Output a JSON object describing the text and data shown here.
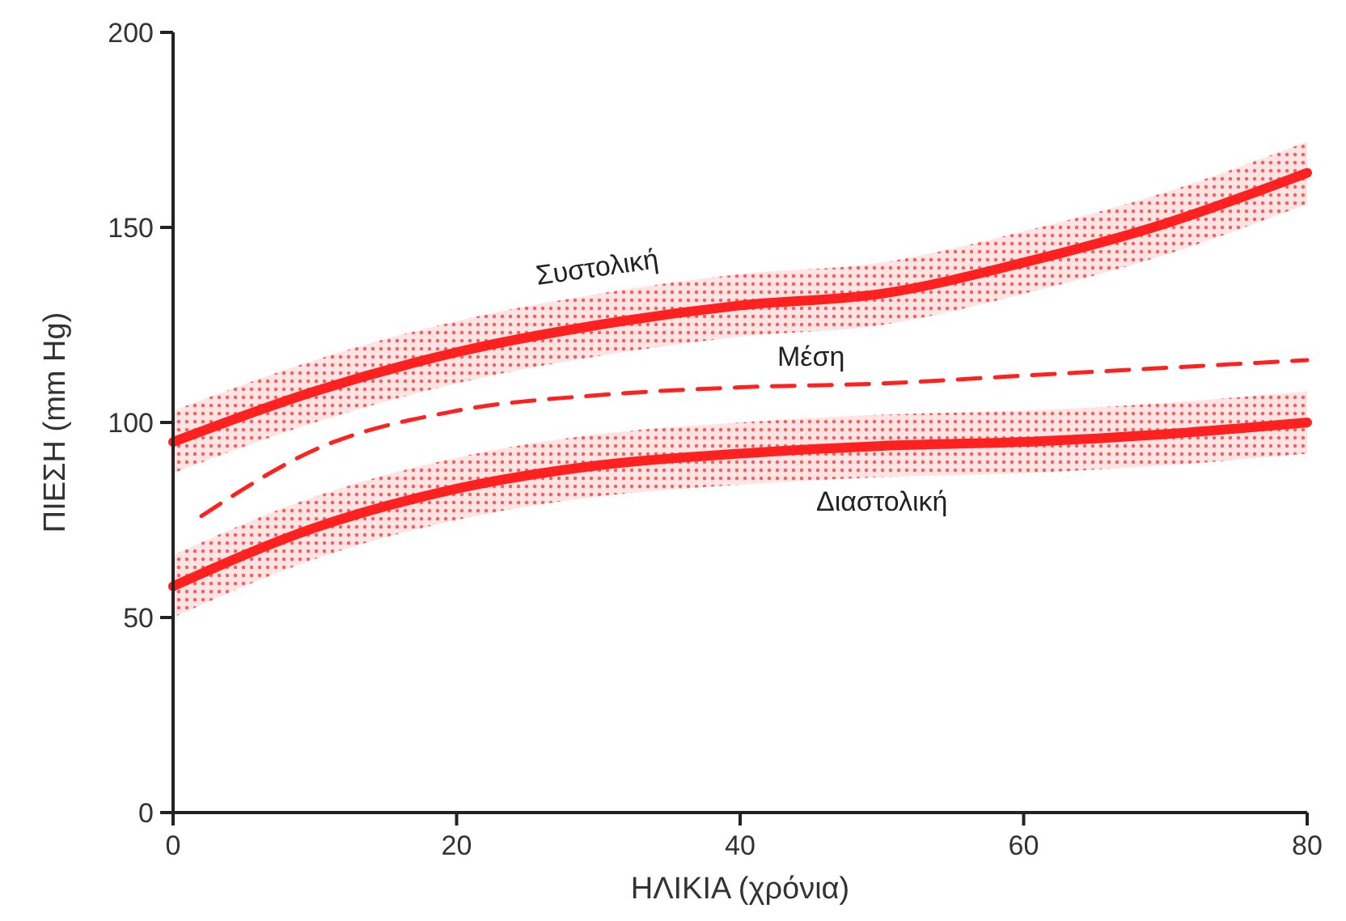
{
  "chart_data": {
    "type": "line",
    "xlabel": "ΗΛΙΚΙΑ (χρόνια)",
    "ylabel": "ΠΙΕΣΗ (mm Hg)",
    "xlim": [
      0,
      80
    ],
    "xticks": [
      0,
      20,
      40,
      60,
      80
    ],
    "ylim": [
      0,
      200
    ],
    "yticks": [
      0,
      50,
      100,
      150,
      200
    ],
    "grid": false,
    "marker": "none",
    "series": [
      {
        "name": "Συστολική",
        "color": "#ff2020",
        "line_style": "solid",
        "x": [
          0,
          10,
          20,
          30,
          40,
          50,
          60,
          70,
          80
        ],
        "values": [
          95,
          108,
          118,
          125,
          130,
          133,
          141,
          151,
          164
        ],
        "lower": [
          87,
          100,
          110,
          117,
          122,
          125,
          133,
          143,
          156
        ],
        "upper": [
          103,
          116,
          126,
          133,
          138,
          141,
          149,
          159,
          172
        ]
      },
      {
        "name": "Μέση",
        "color": "#ff2020",
        "line_style": "dashed",
        "x": [
          2,
          10,
          20,
          30,
          40,
          50,
          60,
          70,
          80
        ],
        "values": [
          76,
          93,
          103,
          107,
          109,
          110,
          112,
          114,
          116
        ]
      },
      {
        "name": "Διαστολική",
        "color": "#ff2020",
        "line_style": "solid",
        "x": [
          0,
          10,
          20,
          30,
          40,
          50,
          60,
          70,
          80
        ],
        "values": [
          58,
          73,
          83,
          89,
          92,
          94,
          95,
          97,
          100
        ],
        "lower": [
          50,
          65,
          75,
          81,
          84,
          86,
          87,
          89,
          92
        ],
        "upper": [
          66,
          81,
          91,
          97,
          100,
          102,
          103,
          105,
          108
        ]
      }
    ]
  }
}
